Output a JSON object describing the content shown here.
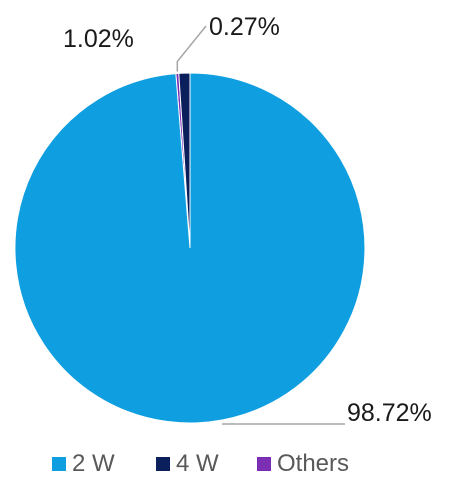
{
  "chart_data": {
    "type": "pie",
    "title": "",
    "slices": [
      {
        "name": "2 W",
        "value": 98.72,
        "label": "98.72%",
        "color": "#0f9ee0"
      },
      {
        "name": "4 W",
        "value": 1.02,
        "label": "1.02%",
        "color": "#0b1f5c"
      },
      {
        "name": "Others",
        "value": 0.27,
        "label": "0.27%",
        "color": "#7b2fb5"
      }
    ],
    "legend_position": "bottom",
    "label_line_color": "#a6a6a6"
  }
}
